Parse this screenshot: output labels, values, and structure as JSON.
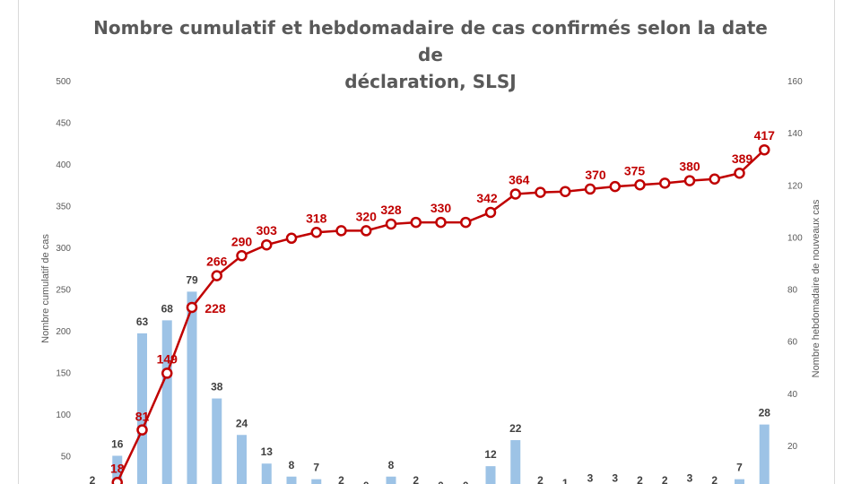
{
  "chart_data": {
    "type": "bar+line",
    "title": "Nombre cumulatif et hebdomadaire de cas confirmés selon la date de déclaration, SLSJ",
    "title_lines": [
      "Nombre cumulatif et hebdomadaire de cas confirmés selon la date de",
      "déclaration, SLSJ"
    ],
    "ylabel_left": "Nombre cumulatif de cas",
    "ylabel_right": "Nombre hebdomadaire de nouveaux cas",
    "ylim_left": [
      0,
      500
    ],
    "ylim_right": [
      0,
      160
    ],
    "yticks_left": [
      "50",
      "100",
      "150",
      "200",
      "250",
      "300",
      "350",
      "400",
      "450",
      "500"
    ],
    "yticks_right": [
      "20",
      "40",
      "60",
      "80",
      "100",
      "120",
      "140",
      "160"
    ],
    "grid": false,
    "series": [
      {
        "name": "",
        "kind": "bar",
        "axis": "right",
        "color": "#9dc3e6",
        "values": [
          2,
          16,
          63,
          68,
          79,
          38,
          24,
          13,
          8,
          7,
          2,
          0,
          8,
          2,
          0,
          0,
          12,
          22,
          2,
          1,
          3,
          3,
          2,
          2,
          3,
          2,
          7,
          28
        ]
      },
      {
        "name": "",
        "kind": "line",
        "axis": "left",
        "color": "#c00000",
        "values": [
          2,
          18,
          81,
          149,
          228,
          266,
          290,
          303,
          311,
          318,
          320,
          320,
          328,
          330,
          330,
          330,
          342,
          364,
          366,
          367,
          370,
          373,
          375,
          377,
          380,
          382,
          389,
          417
        ],
        "labels": [
          "",
          "18",
          "81",
          "149",
          "228",
          "266",
          "290",
          "303",
          "",
          "318",
          "",
          "320",
          "328",
          "",
          "330",
          "",
          "342",
          "364",
          "",
          "",
          "370",
          "",
          "375",
          "",
          "380",
          "",
          "389",
          "417"
        ]
      }
    ]
  },
  "colors": {
    "bar": "#9dc3e6",
    "line": "#c00000",
    "axis_text": "#595959",
    "title": "#595959"
  }
}
